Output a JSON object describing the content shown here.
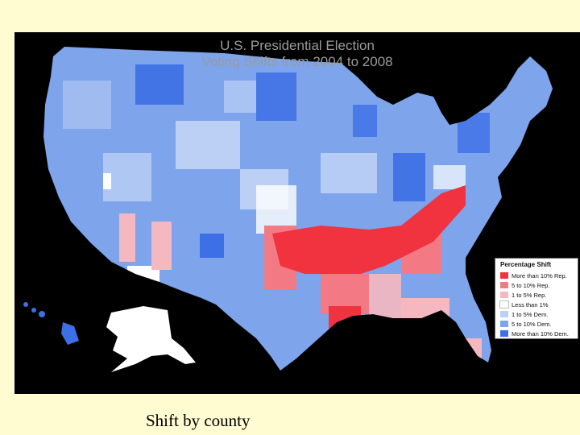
{
  "slide": {
    "background": "#fefcd0",
    "caption": "Shift by county"
  },
  "map": {
    "title_line_1": "U.S. Presidential Election",
    "title_line_2": "Voting Shifts from 2004 to 2008",
    "legend": {
      "title": "Percentage Shift",
      "items": [
        {
          "label": "More than 10% Rep.",
          "color": "#f0333e"
        },
        {
          "label": "5 to 10% Rep.",
          "color": "#f37a85"
        },
        {
          "label": "1 to 5% Rep.",
          "color": "#f6b8c0"
        },
        {
          "label": "Less than 1%",
          "color": "#ffffff"
        },
        {
          "label": "1 to 5% Dem.",
          "color": "#bcd0f5"
        },
        {
          "label": "5 to 10% Dem.",
          "color": "#7ea4ec"
        },
        {
          "label": "More than 10% Dem.",
          "color": "#3d6fe6"
        }
      ]
    }
  }
}
